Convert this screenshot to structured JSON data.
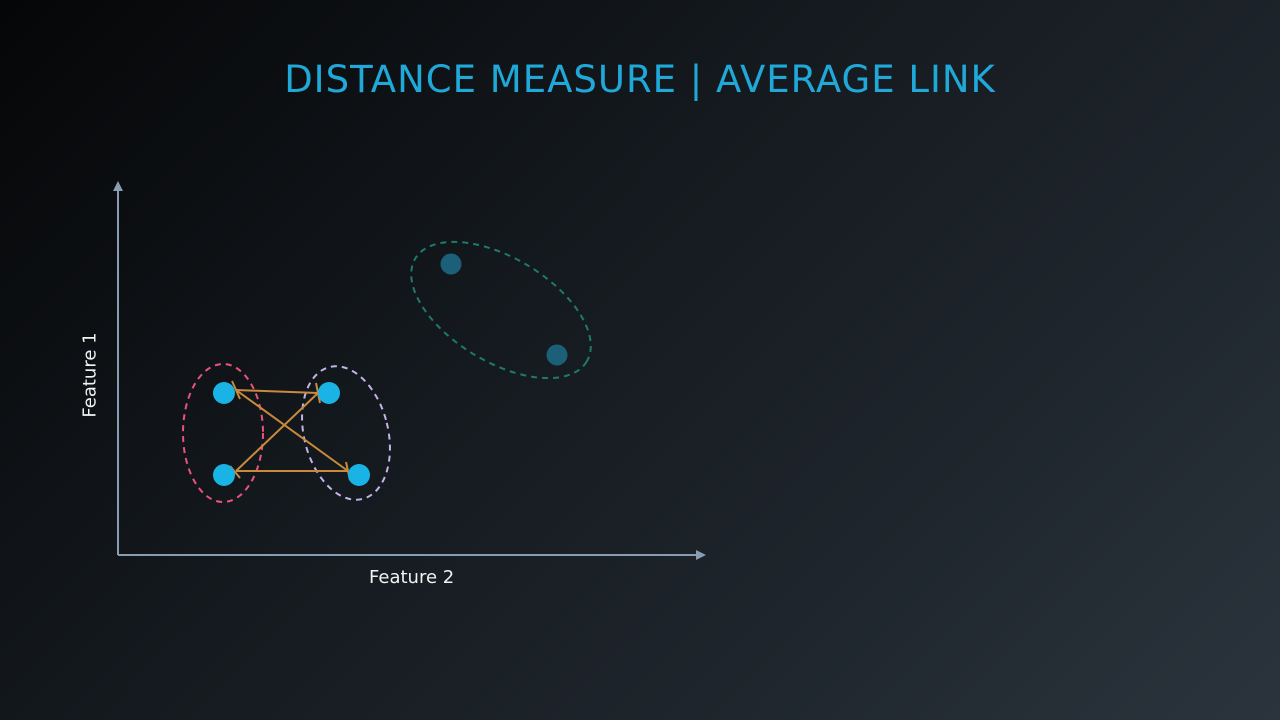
{
  "title": "DISTANCE MEASURE | AVERAGE LINK",
  "axes": {
    "x_label": "Feature 2",
    "y_label": "Feature 1"
  },
  "colors": {
    "title": "#1fa8d8",
    "axis": "#8a9db0",
    "point_active": "#1ab3e6",
    "point_inactive": "#1b5f78",
    "cluster_pink": "#e8547a",
    "cluster_lavender": "#c4b3e8",
    "cluster_teal": "#1f7a6a",
    "link_lines": "#c98a3c"
  },
  "clusters": [
    {
      "name": "pink-cluster",
      "style": "dashed"
    },
    {
      "name": "lavender-cluster",
      "style": "dashed"
    },
    {
      "name": "teal-cluster",
      "style": "dashed"
    }
  ]
}
